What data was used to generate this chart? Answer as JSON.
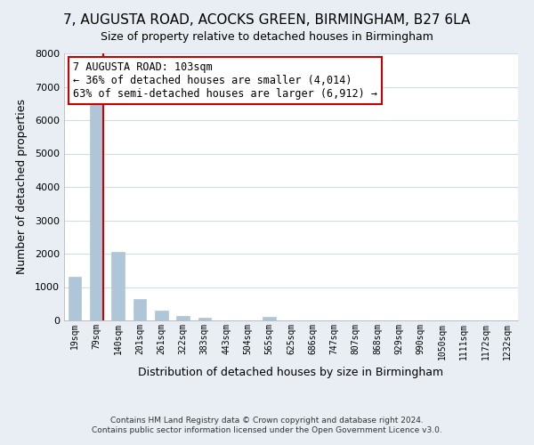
{
  "title": "7, AUGUSTA ROAD, ACOCKS GREEN, BIRMINGHAM, B27 6LA",
  "subtitle": "Size of property relative to detached houses in Birmingham",
  "xlabel": "Distribution of detached houses by size in Birmingham",
  "ylabel": "Number of detached properties",
  "bar_labels": [
    "19sqm",
    "79sqm",
    "140sqm",
    "201sqm",
    "261sqm",
    "322sqm",
    "383sqm",
    "443sqm",
    "504sqm",
    "565sqm",
    "625sqm",
    "686sqm",
    "747sqm",
    "807sqm",
    "868sqm",
    "929sqm",
    "990sqm",
    "1050sqm",
    "1111sqm",
    "1172sqm",
    "1232sqm"
  ],
  "bar_heights": [
    1300,
    6600,
    2050,
    650,
    300,
    130,
    80,
    0,
    0,
    100,
    0,
    0,
    0,
    0,
    0,
    0,
    0,
    0,
    0,
    0,
    0
  ],
  "bar_color": "#aec6d8",
  "vline_color": "#cc0000",
  "ylim": [
    0,
    8000
  ],
  "yticks": [
    0,
    1000,
    2000,
    3000,
    4000,
    5000,
    6000,
    7000,
    8000
  ],
  "annotation_title": "7 AUGUSTA ROAD: 103sqm",
  "annotation_line1": "← 36% of detached houses are smaller (4,014)",
  "annotation_line2": "63% of semi-detached houses are larger (6,912) →",
  "annotation_box_color": "#ffffff",
  "annotation_box_edge": "#cc0000",
  "footer1": "Contains HM Land Registry data © Crown copyright and database right 2024.",
  "footer2": "Contains public sector information licensed under the Open Government Licence v3.0.",
  "plot_bg_color": "#ffffff",
  "fig_bg_color": "#e8eef4",
  "grid_color": "#ccdde8",
  "title_fontsize": 11,
  "subtitle_fontsize": 10
}
